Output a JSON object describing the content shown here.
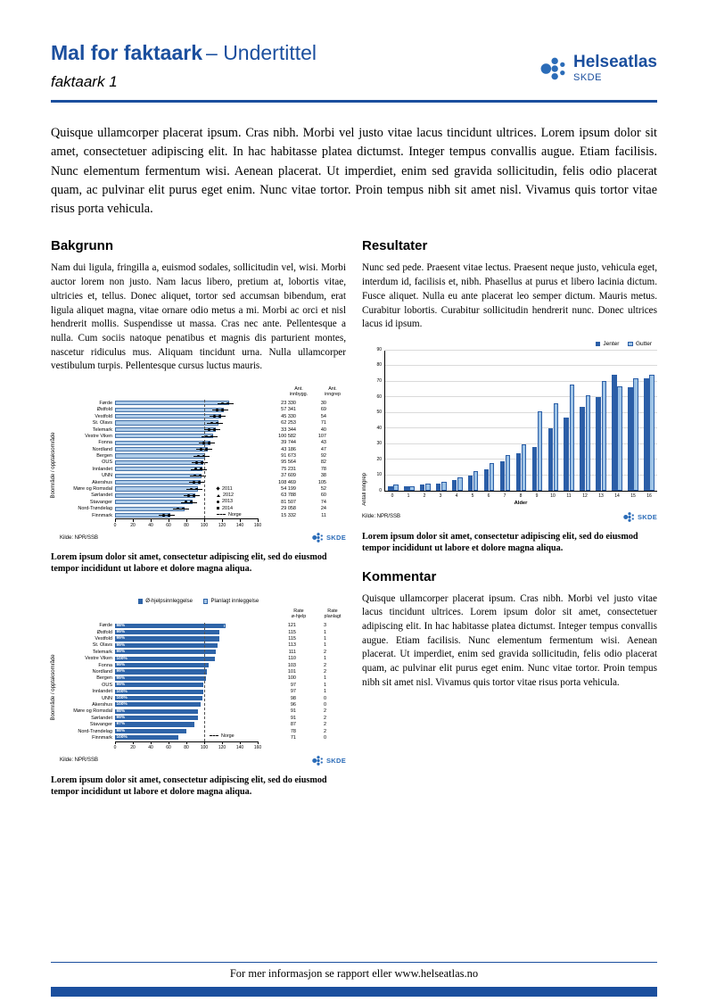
{
  "header": {
    "title": "Mal for faktaark",
    "title_suffix": "– Undertittel",
    "subtitle": "faktaark 1",
    "logo": {
      "name": "Helseatlas",
      "sub": "SKDE"
    }
  },
  "intro": "Quisque ullamcorper placerat ipsum. Cras nibh. Morbi vel justo vitae lacus tincidunt ultrices. Lorem ipsum dolor sit amet, consectetuer adipiscing elit. In hac habitasse platea dictumst. Integer tempus convallis augue. Etiam facilisis. Nunc elementum fermentum wisi. Aenean placerat. Ut imperdiet, enim sed gravida sollicitudin, felis odio placerat quam, ac pulvinar elit purus eget enim. Nunc vitae tortor. Proin tempus nibh sit amet nisl. Vivamus quis tortor vitae risus porta vehicula.",
  "sections": {
    "bakgrunn": {
      "heading": "Bakgrunn",
      "body": "Nam dui ligula, fringilla a, euismod sodales, sollicitudin vel, wisi. Morbi auctor lorem non justo. Nam lacus libero, pretium at, lobortis vitae, ultricies et, tellus. Donec aliquet, tortor sed accumsan bibendum, erat ligula aliquet magna, vitae ornare odio metus a mi. Morbi ac orci et nisl hendrerit mollis. Suspendisse ut massa. Cras nec ante. Pellentesque a nulla. Cum sociis natoque penatibus et magnis dis parturient montes, nascetur ridiculus mus. Aliquam tincidunt urna. Nulla ullamcorper vestibulum turpis. Pellentesque cursus luctus mauris."
    },
    "resultater": {
      "heading": "Resultater",
      "body": "Nunc sed pede. Praesent vitae lectus. Praesent neque justo, vehicula eget, interdum id, facilisis et, nibh. Phasellus at purus et libero lacinia dictum. Fusce aliquet. Nulla eu ante placerat leo semper dictum. Mauris metus. Curabitur lobortis. Curabitur sollicitudin hendrerit nunc. Donec ultrices lacus id ipsum."
    },
    "kommentar": {
      "heading": "Kommentar",
      "body": "Quisque ullamcorper placerat ipsum. Cras nibh. Morbi vel justo vitae lacus tincidunt ultrices. Lorem ipsum dolor sit amet, consectetuer adipiscing elit. In hac habitasse platea dictumst. Integer tempus convallis augue. Etiam facilisis. Nunc elementum fermentum wisi. Aenean placerat. Ut imperdiet, enim sed gravida sollicitudin, felis odio placerat quam, ac pulvinar elit purus eget enim. Nunc vitae tortor. Proin tempus nibh sit amet nisl. Vivamus quis tortor vitae risus porta vehicula."
    }
  },
  "captions": {
    "chart1": "Lorem ipsum dolor sit amet, consectetur adipiscing elit, sed do eiusmod tempor incididunt ut labore et dolore magna aliqua.",
    "chart2": "Lorem ipsum dolor sit amet, consectetur adipiscing elit, sed do eiusmod tempor incididunt ut labore et dolore magna aliqua.",
    "chart3": "Lorem ipsum dolor sit amet, consectetur adipiscing elit, sed do eiusmod tempor incididunt ut labore et dolore magna aliqua."
  },
  "footer": {
    "text": "For mer informasjon se rapport eller www.helseatlas.no"
  },
  "logos": {
    "skde": "SKDE"
  },
  "colors": {
    "brand": "#1B4F9E",
    "skde_blue": "#2B6CB8",
    "bar_light": "#AECBE8",
    "bar_border": "#4472A8",
    "dark_series": "#2E64A8",
    "light_series": "#A9C7E6",
    "grid": "#DADADA"
  },
  "chart_data": [
    {
      "type": "bar",
      "orientation": "horizontal",
      "ylabel": "Boområde / opptaksområde",
      "xlim": [
        0,
        160
      ],
      "xticks": [
        0,
        20,
        40,
        60,
        80,
        100,
        120,
        140,
        160
      ],
      "reference_line": 100,
      "reference_label": "Norge",
      "legend_years": [
        "2011",
        "2012",
        "2013",
        "2014"
      ],
      "source": "Kilde: NPR/SSB",
      "bar_color": "#AECBE8",
      "bar_border": "#4472A8",
      "categories": [
        "Førde",
        "Østfold",
        "Vestfold",
        "St. Olavs",
        "Telemark",
        "Vestre Viken",
        "Fonna",
        "Nordland",
        "Bergen",
        "OUS",
        "Innlandet",
        "UNN",
        "Akershus",
        "Møre og Romsdal",
        "Sørlandet",
        "Stavanger",
        "Nord-Trøndelag",
        "Finnmark"
      ],
      "values": [
        128,
        122,
        119,
        116,
        113,
        110,
        107,
        104,
        101,
        99,
        98,
        97,
        96,
        93,
        90,
        87,
        78,
        62
      ],
      "columns": {
        "headers": [
          "Ant.\ninnbygg.",
          "Ant.\ninngrep"
        ],
        "rows": [
          [
            "23 330",
            "30"
          ],
          [
            "57 341",
            "69"
          ],
          [
            "45 330",
            "54"
          ],
          [
            "62 253",
            "71"
          ],
          [
            "33 344",
            "40"
          ],
          [
            "100 582",
            "107"
          ],
          [
            "39 744",
            "43"
          ],
          [
            "43 186",
            "47"
          ],
          [
            "91 673",
            "92"
          ],
          [
            "95 564",
            "82"
          ],
          [
            "75 231",
            "78"
          ],
          [
            "37 609",
            "38"
          ],
          [
            "108 469",
            "105"
          ],
          [
            "54 199",
            "52"
          ],
          [
            "63 788",
            "60"
          ],
          [
            "81 507",
            "74"
          ],
          [
            "29 058",
            "24"
          ],
          [
            "15 332",
            "11"
          ]
        ]
      }
    },
    {
      "type": "bar",
      "orientation": "horizontal",
      "stacked": true,
      "ylabel": "Boområde / opptaksområde",
      "xlim": [
        0,
        160
      ],
      "xticks": [
        0,
        20,
        40,
        60,
        80,
        100,
        120,
        140,
        160
      ],
      "reference_line": 100,
      "reference_label": "Norge",
      "source": "Kilde: NPR/SSB",
      "categories": [
        "Førde",
        "Østfold",
        "Vestfold",
        "St. Olavs",
        "Telemark",
        "Vestre Viken",
        "Fonna",
        "Nordland",
        "Bergen",
        "OUS",
        "Innlandet",
        "UNN",
        "Akershus",
        "Møre og Romsdal",
        "Sørlandet",
        "Stavanger",
        "Nord-Trøndelag",
        "Finnmark"
      ],
      "percent_labels": [
        "98%",
        "99%",
        "99%",
        "99%",
        "99%",
        "100%",
        "99%",
        "99%",
        "99%",
        "99%",
        "100%",
        "100%",
        "100%",
        "98%",
        "99%",
        "97%",
        "98%",
        "100%"
      ],
      "series": [
        {
          "name": "Ø-hjelpsinnleggelse",
          "color": "#2E64A8",
          "values": [
            121,
            115,
            115,
            113,
            111,
            110,
            103,
            101,
            100,
            97,
            97,
            98,
            96,
            91,
            91,
            87,
            78,
            71
          ]
        },
        {
          "name": "Planlagt innleggelse",
          "color": "#A9C7E6",
          "values": [
            3,
            1,
            1,
            1,
            2,
            1,
            2,
            2,
            1,
            1,
            1,
            0,
            0,
            2,
            2,
            2,
            2,
            0
          ]
        }
      ],
      "columns": {
        "headers": [
          "Rate\nø-hjelp",
          "Rate\nplanlagt"
        ]
      }
    },
    {
      "type": "bar",
      "xlabel": "Alder",
      "ylabel": "Antall inngrep",
      "ylim": [
        0,
        90
      ],
      "yticks": [
        0,
        10,
        20,
        30,
        40,
        50,
        60,
        70,
        80,
        90
      ],
      "source": "Kilde: NPR/SSB",
      "categories": [
        "0",
        "1",
        "2",
        "3",
        "4",
        "5",
        "6",
        "7",
        "8",
        "9",
        "10",
        "11",
        "12",
        "13",
        "14",
        "15",
        "16"
      ],
      "series": [
        {
          "name": "Jenter",
          "color": "#2B5EA7",
          "values": [
            3,
            3,
            4,
            5,
            7,
            10,
            14,
            19,
            24,
            28,
            40,
            47,
            54,
            60,
            74,
            66,
            72
          ]
        },
        {
          "name": "Gutter",
          "color": "#9DC3E6",
          "values": [
            4,
            3,
            5,
            6,
            9,
            13,
            18,
            23,
            30,
            51,
            56,
            68,
            61,
            70,
            67,
            72,
            74
          ]
        }
      ]
    }
  ]
}
